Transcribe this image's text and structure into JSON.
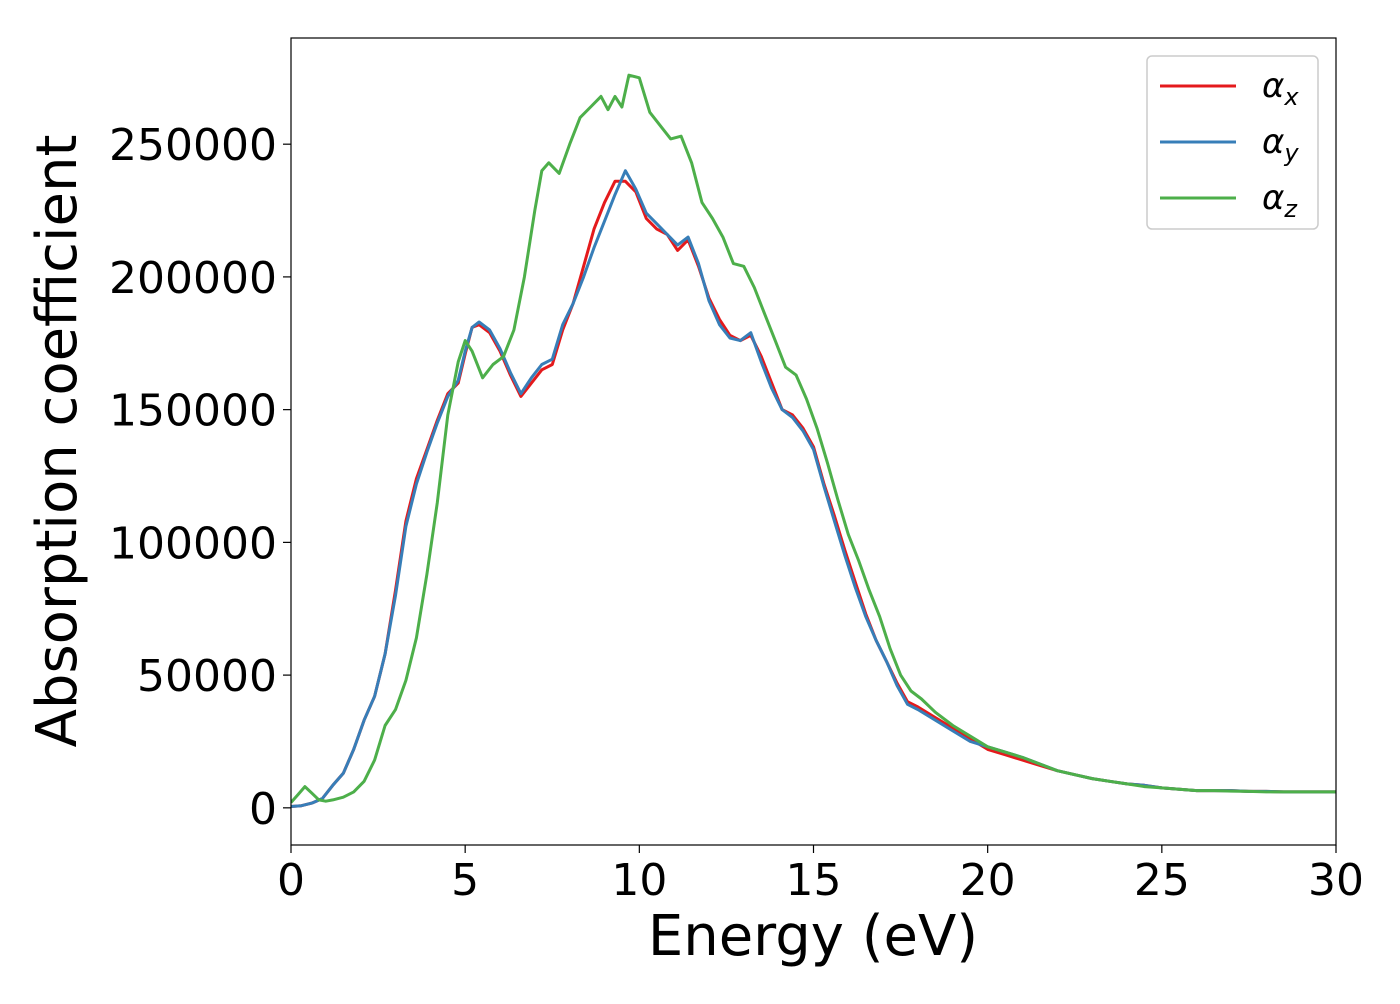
{
  "chart_data": {
    "type": "line",
    "title": "",
    "xlabel": "Energy (eV)",
    "ylabel": "Absorption coefficient",
    "xlim": [
      0,
      30
    ],
    "ylim": [
      -14000,
      290000
    ],
    "xticks": [
      0,
      5,
      10,
      15,
      20,
      25,
      30
    ],
    "yticks": [
      0,
      50000,
      100000,
      150000,
      200000,
      250000
    ],
    "grid": false,
    "legend_position": "top-right",
    "series": [
      {
        "name": "α",
        "subscript": "x",
        "color": "#e41a1c",
        "x": [
          0,
          0.3,
          0.6,
          0.9,
          1.2,
          1.5,
          1.8,
          2.1,
          2.4,
          2.7,
          3.0,
          3.3,
          3.6,
          3.9,
          4.2,
          4.5,
          4.8,
          5.0,
          5.2,
          5.4,
          5.7,
          6.0,
          6.3,
          6.6,
          6.9,
          7.2,
          7.5,
          7.8,
          8.1,
          8.4,
          8.7,
          9.0,
          9.3,
          9.6,
          9.9,
          10.2,
          10.5,
          10.8,
          11.1,
          11.4,
          11.7,
          12.0,
          12.3,
          12.6,
          12.9,
          13.2,
          13.5,
          13.8,
          14.1,
          14.4,
          14.7,
          15.0,
          15.3,
          15.6,
          15.9,
          16.2,
          16.5,
          16.8,
          17.1,
          17.4,
          17.7,
          18.0,
          18.5,
          19.0,
          19.5,
          20.0,
          20.5,
          21.0,
          21.5,
          22.0,
          22.5,
          23.0,
          23.5,
          24.0,
          24.5,
          25.0,
          25.5,
          26.0,
          26.5,
          27.0,
          27.5,
          28.0,
          28.5,
          29.0,
          29.5,
          30.0
        ],
        "y": [
          500,
          800,
          1800,
          3500,
          8500,
          13000,
          22000,
          33000,
          42000,
          58000,
          82000,
          108000,
          124000,
          135000,
          146000,
          156000,
          160000,
          171000,
          181000,
          182000,
          179000,
          172000,
          163000,
          155000,
          160000,
          165000,
          167000,
          180000,
          190000,
          204000,
          218000,
          228000,
          236000,
          236000,
          232000,
          222000,
          218000,
          216000,
          210000,
          214000,
          204000,
          192000,
          184000,
          178000,
          176000,
          178000,
          170000,
          160000,
          150000,
          148000,
          143000,
          136000,
          122000,
          110000,
          97000,
          85000,
          73000,
          63000,
          55000,
          47000,
          40000,
          38000,
          34000,
          30000,
          26000,
          22000,
          20000,
          18000,
          16000,
          14000,
          12500,
          11000,
          10000,
          9000,
          8500,
          7500,
          7000,
          6500,
          6500,
          6500,
          6200,
          6200,
          6000,
          6000,
          6000,
          6000
        ]
      },
      {
        "name": "α",
        "subscript": "y",
        "color": "#377eb8",
        "x": [
          0,
          0.3,
          0.6,
          0.9,
          1.2,
          1.5,
          1.8,
          2.1,
          2.4,
          2.7,
          3.0,
          3.3,
          3.6,
          3.9,
          4.2,
          4.5,
          4.8,
          5.0,
          5.2,
          5.4,
          5.7,
          6.0,
          6.3,
          6.6,
          6.9,
          7.2,
          7.5,
          7.8,
          8.1,
          8.4,
          8.7,
          9.0,
          9.3,
          9.6,
          9.9,
          10.2,
          10.5,
          10.8,
          11.1,
          11.4,
          11.7,
          12.0,
          12.3,
          12.6,
          12.9,
          13.2,
          13.5,
          13.8,
          14.1,
          14.4,
          14.7,
          15.0,
          15.3,
          15.6,
          15.9,
          16.2,
          16.5,
          16.8,
          17.1,
          17.4,
          17.7,
          18.0,
          18.5,
          19.0,
          19.5,
          20.0,
          20.5,
          21.0,
          21.5,
          22.0,
          22.5,
          23.0,
          23.5,
          24.0,
          24.5,
          25.0,
          25.5,
          26.0,
          26.5,
          27.0,
          27.5,
          28.0,
          28.5,
          29.0,
          29.5,
          30.0
        ],
        "y": [
          500,
          800,
          1800,
          3500,
          8500,
          13000,
          22000,
          33000,
          42000,
          58000,
          80000,
          106000,
          122000,
          134000,
          145000,
          155000,
          161000,
          172000,
          181000,
          183000,
          180000,
          173000,
          164000,
          156000,
          162000,
          167000,
          169000,
          182000,
          190000,
          200000,
          211000,
          221000,
          231000,
          240000,
          233000,
          224000,
          220000,
          216000,
          212000,
          215000,
          205000,
          191000,
          182000,
          177000,
          176000,
          179000,
          168000,
          158000,
          150000,
          147000,
          142000,
          135000,
          121000,
          108000,
          95000,
          83000,
          72000,
          63000,
          55000,
          46000,
          39000,
          37000,
          33000,
          29000,
          25000,
          23000,
          21000,
          19000,
          16500,
          14000,
          12500,
          11000,
          10000,
          9000,
          8500,
          7500,
          7000,
          6500,
          6500,
          6500,
          6200,
          6200,
          6000,
          6000,
          6000,
          6000
        ]
      },
      {
        "name": "α",
        "subscript": "z",
        "color": "#4daf4a",
        "x": [
          0,
          0.2,
          0.4,
          0.6,
          0.8,
          1.0,
          1.2,
          1.5,
          1.8,
          2.1,
          2.4,
          2.7,
          3.0,
          3.3,
          3.6,
          3.9,
          4.2,
          4.5,
          4.8,
          5.0,
          5.2,
          5.5,
          5.8,
          6.1,
          6.4,
          6.7,
          7.0,
          7.2,
          7.4,
          7.7,
          8.0,
          8.3,
          8.6,
          8.9,
          9.1,
          9.3,
          9.5,
          9.7,
          10.0,
          10.3,
          10.6,
          10.9,
          11.2,
          11.5,
          11.8,
          12.1,
          12.4,
          12.7,
          13.0,
          13.3,
          13.6,
          13.9,
          14.2,
          14.5,
          14.8,
          15.1,
          15.4,
          15.7,
          16.0,
          16.3,
          16.6,
          16.9,
          17.2,
          17.5,
          17.8,
          18.1,
          18.5,
          19.0,
          19.5,
          20.0,
          20.5,
          21.0,
          21.5,
          22.0,
          22.5,
          23.0,
          23.5,
          24.0,
          24.5,
          25.0,
          25.5,
          26.0,
          26.5,
          27.0,
          27.5,
          28.0,
          28.5,
          29.0,
          29.5,
          30.0
        ],
        "y": [
          2000,
          5000,
          8000,
          5500,
          3000,
          2500,
          3000,
          4000,
          6000,
          10000,
          18000,
          31000,
          37000,
          48000,
          64000,
          88000,
          115000,
          148000,
          168000,
          176000,
          172000,
          162000,
          167000,
          170000,
          180000,
          200000,
          225000,
          240000,
          243000,
          239000,
          250000,
          260000,
          264000,
          268000,
          263000,
          268000,
          264000,
          276000,
          275000,
          262000,
          257000,
          252000,
          253000,
          243000,
          228000,
          222000,
          215000,
          205000,
          204000,
          196000,
          186000,
          176000,
          166000,
          163000,
          154000,
          143000,
          130000,
          116000,
          103000,
          93000,
          82000,
          72000,
          60000,
          50000,
          44000,
          41000,
          36000,
          31000,
          27000,
          23000,
          21000,
          19000,
          16500,
          14000,
          12500,
          11000,
          10000,
          9000,
          8000,
          7500,
          7000,
          6500,
          6500,
          6300,
          6200,
          6000,
          6000,
          6000,
          6000,
          6000
        ]
      }
    ]
  }
}
